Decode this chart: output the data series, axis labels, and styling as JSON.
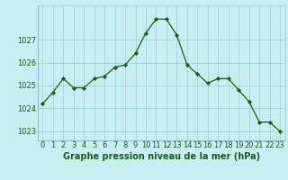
{
  "x": [
    0,
    1,
    2,
    3,
    4,
    5,
    6,
    7,
    8,
    9,
    10,
    11,
    12,
    13,
    14,
    15,
    16,
    17,
    18,
    19,
    20,
    21,
    22,
    23
  ],
  "y": [
    1024.2,
    1024.7,
    1025.3,
    1024.9,
    1024.9,
    1025.3,
    1025.4,
    1025.8,
    1025.9,
    1026.4,
    1027.3,
    1027.9,
    1027.9,
    1027.2,
    1025.9,
    1025.5,
    1025.1,
    1025.3,
    1025.3,
    1024.8,
    1024.3,
    1023.4,
    1023.4,
    1023.0
  ],
  "line_color": "#1a5c1a",
  "marker": "D",
  "marker_size": 2.2,
  "background_color": "#c8eef0",
  "grid_color": "#a0d4d8",
  "xlabel": "Graphe pression niveau de la mer (hPa)",
  "xlabel_fontsize": 7,
  "xlabel_fontweight": "bold",
  "xlabel_color": "#1a5c1a",
  "tick_color": "#1a5c1a",
  "tick_fontsize": 6,
  "ylim": [
    1022.6,
    1028.5
  ],
  "xlim": [
    -0.5,
    23.5
  ],
  "yticks": [
    1023,
    1024,
    1025,
    1026,
    1027
  ],
  "xtick_labels": [
    "0",
    "1",
    "2",
    "3",
    "4",
    "5",
    "6",
    "7",
    "8",
    "9",
    "10",
    "11",
    "12",
    "13",
    "14",
    "15",
    "16",
    "17",
    "18",
    "19",
    "20",
    "21",
    "22",
    "23"
  ]
}
